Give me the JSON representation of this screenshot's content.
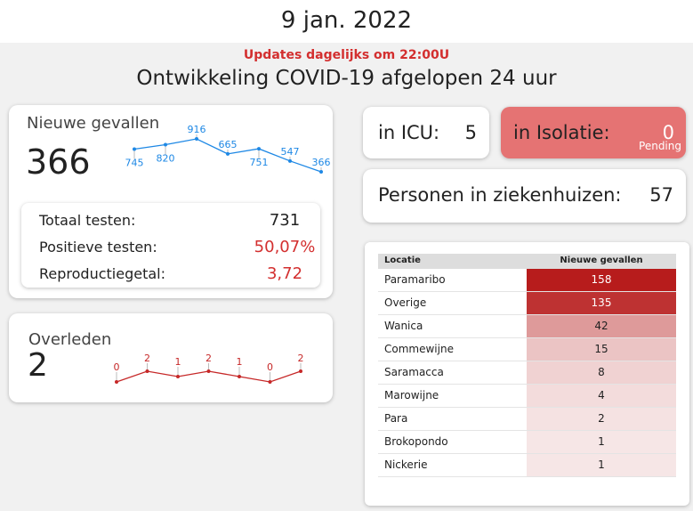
{
  "header": {
    "date": "9 jan. 2022",
    "update_note": "Updates dagelijks om 22:00U",
    "title": "Ontwikkeling COVID-19 afgelopen 24 uur"
  },
  "new_cases": {
    "label": "Nieuwe gevallen",
    "value": 366,
    "trend": [
      745,
      820,
      916,
      665,
      751,
      547,
      366
    ],
    "color": "#1e88e5",
    "stats": [
      {
        "label": "Totaal testen:",
        "value": "731"
      },
      {
        "label": "Positieve testen:",
        "value": "50,07%"
      },
      {
        "label": "Reproductiegetal:",
        "value": "3,72"
      }
    ]
  },
  "deaths": {
    "label": "Overleden",
    "value": 2,
    "trend": [
      0,
      2,
      1,
      2,
      1,
      0,
      2
    ],
    "color": "#c62828"
  },
  "icu": {
    "label": "in ICU:",
    "value": 5
  },
  "isolation": {
    "label": "in Isolatie:",
    "value": 0,
    "status": "Pending"
  },
  "hospital": {
    "label": "Personen in ziekenhuizen:",
    "value": 57
  },
  "table": {
    "columns": [
      "Locatie",
      "Nieuwe gevallen"
    ],
    "rows": [
      [
        "Paramaribo",
        158
      ],
      [
        "Overige",
        135
      ],
      [
        "Wanica",
        42
      ],
      [
        "Commewijne",
        15
      ],
      [
        "Saramacca",
        8
      ],
      [
        "Marowijne",
        4
      ],
      [
        "Para",
        2
      ],
      [
        "Brokopondo",
        1
      ],
      [
        "Nickerie",
        1
      ]
    ]
  }
}
